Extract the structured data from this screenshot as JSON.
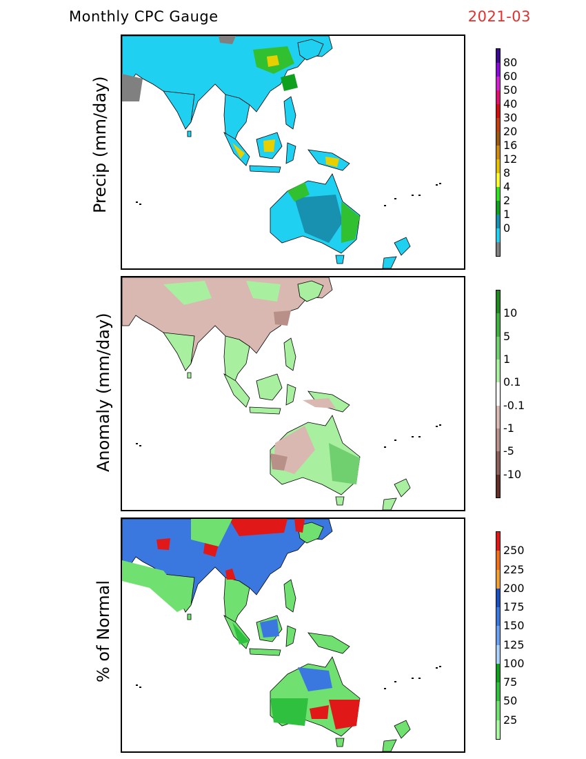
{
  "header": {
    "title": "Monthly CPC Gauge",
    "date": "2021-03",
    "date_color": "#e03030"
  },
  "panels": [
    {
      "label": "Precip (mm/day)",
      "scale_labels": [
        "80",
        "60",
        "50",
        "40",
        "30",
        "20",
        "16",
        "12",
        "8",
        "4",
        "2",
        "1",
        "0"
      ],
      "scale_colors": [
        "#3a0a90",
        "#8a0ad8",
        "#d020d0",
        "#e0106e",
        "#d01010",
        "#c04010",
        "#9a5a10",
        "#cc8a10",
        "#e0c000",
        "#ffff30",
        "#30e020",
        "#10a020",
        "#1890b0",
        "#20d0f0",
        "#808080"
      ],
      "land_colors": {
        "base": "#20d0f0",
        "mid": "#1890b0",
        "green": "#30c030",
        "dark": "#10a020",
        "yellow": "#e8d000",
        "gray": "#808080"
      }
    },
    {
      "label": "Anomaly (mm/day)",
      "scale_labels": [
        "10",
        "5",
        "1",
        "0.1",
        "-0.1",
        "-1",
        "-5",
        "-10"
      ],
      "scale_colors": [
        "#208a20",
        "#40b040",
        "#70d070",
        "#a8f0a0",
        "#ffffff",
        "#d8b8b0",
        "#b89088",
        "#8a6058",
        "#603028"
      ],
      "land_colors": {
        "base": "#a8f0a0",
        "mid": "#d8b8b0",
        "dark": "#b89088",
        "green": "#70d070"
      }
    },
    {
      "label": "% of Normal",
      "scale_labels": [
        "250",
        "225",
        "200",
        "175",
        "150",
        "125",
        "100",
        "75",
        "50",
        "25"
      ],
      "scale_colors": [
        "#e01818",
        "#f07018",
        "#f0a030",
        "#1a50c0",
        "#3a78e0",
        "#6aa0f0",
        "#a8d0f8",
        "#10a020",
        "#30c040",
        "#70e070",
        "#a8f8a0"
      ],
      "land_colors": {
        "base": "#70e070",
        "mid": "#30c040",
        "blue": "#3a78e0",
        "red": "#e01818",
        "light": "#a8f8a0"
      }
    }
  ]
}
